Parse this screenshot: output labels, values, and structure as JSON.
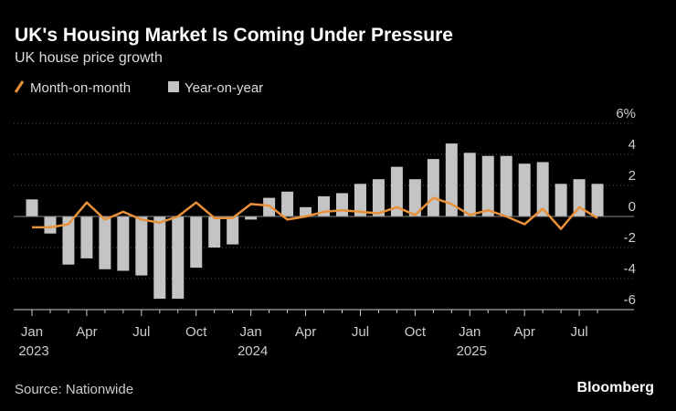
{
  "chart_data": {
    "type": "bar-line",
    "title": "UK's Housing Market Is Coming Under Pressure",
    "subtitle": "UK house price growth",
    "source": "Source: Nationwide",
    "brand": "Bloomberg",
    "categories": [
      "Jan 2023",
      null,
      null,
      "Apr",
      null,
      null,
      "Jul",
      null,
      null,
      "Oct",
      null,
      null,
      "Jan 2024",
      null,
      null,
      "Apr",
      null,
      null,
      "Jul",
      null,
      null,
      "Oct",
      null,
      null,
      "Jan 2025",
      null,
      null,
      "Apr",
      null,
      null,
      "Jul",
      null
    ],
    "series": [
      {
        "name": "Month-on-month",
        "type": "line",
        "color": "#e8913a",
        "values": [
          -0.7,
          -0.7,
          -0.5,
          0.9,
          -0.2,
          0.3,
          -0.2,
          -0.4,
          0.0,
          0.9,
          -0.1,
          -0.1,
          0.8,
          0.7,
          -0.2,
          0.0,
          0.3,
          0.4,
          0.3,
          0.2,
          0.6,
          0.1,
          1.2,
          0.8,
          0.1,
          0.4,
          0.0,
          -0.5,
          0.5,
          -0.8,
          0.6,
          -0.1
        ]
      },
      {
        "name": "Year-on-year",
        "type": "bar",
        "color": "#c4c4c4",
        "values": [
          1.1,
          -1.1,
          -3.1,
          -2.7,
          -3.4,
          -3.5,
          -3.8,
          -5.3,
          -5.3,
          -3.3,
          -2.0,
          -1.8,
          -0.2,
          1.2,
          1.6,
          0.6,
          1.3,
          1.5,
          2.1,
          2.4,
          3.2,
          2.4,
          3.7,
          4.7,
          4.1,
          3.9,
          3.9,
          3.4,
          3.5,
          2.1,
          2.4,
          2.1
        ]
      }
    ],
    "ylim": [
      -6,
      6
    ],
    "yticks": [
      {
        "value": 6,
        "label": "6%"
      },
      4,
      2,
      0,
      -2,
      -4,
      -6
    ],
    "grid": true
  }
}
